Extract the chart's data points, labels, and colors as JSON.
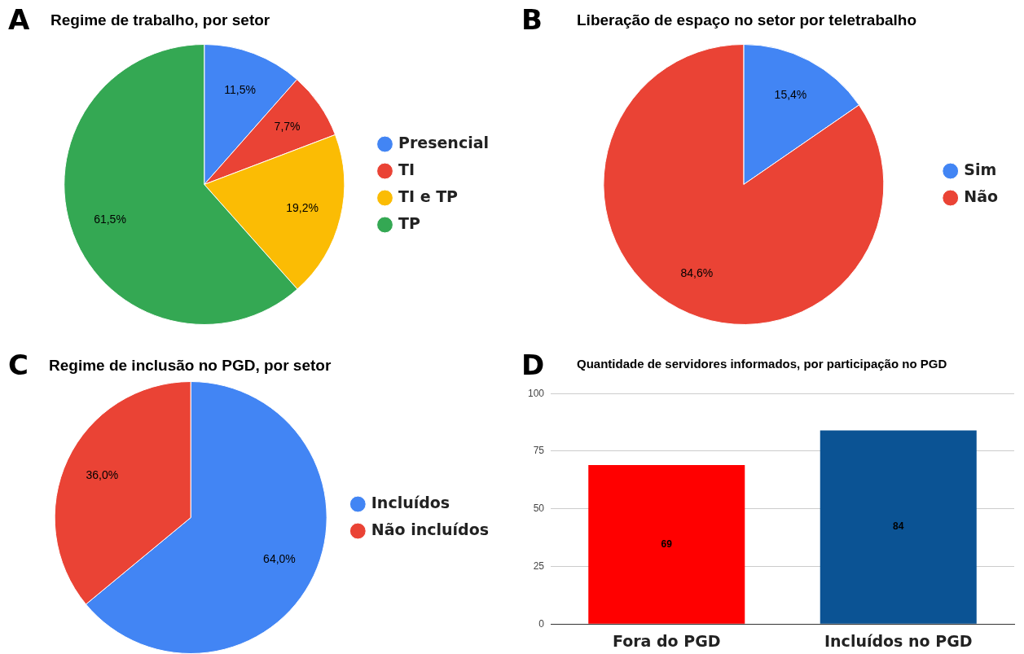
{
  "chart_data": [
    {
      "type": "pie",
      "title": "Regime de trabalho, por setor",
      "annotations": [
        "A"
      ],
      "categories": [
        "Presencial",
        "TI",
        "TI e TP",
        "TP"
      ],
      "values": [
        11.5,
        7.7,
        19.2,
        61.5
      ],
      "colors": [
        "#4285f4",
        "#ea4335",
        "#fbbc04",
        "#34a853"
      ],
      "value_labels": [
        "11,5%",
        "7,7%",
        "19,2%",
        "61,5%"
      ],
      "legend": "right"
    },
    {
      "type": "pie",
      "title": "Liberação de espaço no setor por teletrabalho",
      "annotations": [
        "B"
      ],
      "categories": [
        "Sim",
        "Não"
      ],
      "values": [
        15.4,
        84.6
      ],
      "colors": [
        "#4285f4",
        "#ea4335"
      ],
      "value_labels": [
        "15,4%",
        "84,6%"
      ],
      "legend": "right"
    },
    {
      "type": "pie",
      "title": "Regime de inclusão no PGD, por setor",
      "annotations": [
        "C"
      ],
      "categories": [
        "Incluídos",
        "Não incluídos"
      ],
      "values": [
        64.0,
        36.0
      ],
      "colors": [
        "#4285f4",
        "#ea4335"
      ],
      "value_labels": [
        "64,0%",
        "36,0%"
      ],
      "legend": "right"
    },
    {
      "type": "bar",
      "title": "Quantidade de servidores informados, por participação no PGD",
      "annotations": [
        "D"
      ],
      "categories": [
        "Fora do PGD",
        "Incluídos no PGD"
      ],
      "values": [
        69,
        84
      ],
      "colors": [
        "#ff0000",
        "#0b5394"
      ],
      "ylim": [
        0,
        100
      ],
      "yticks": [
        0,
        25,
        50,
        75,
        100
      ],
      "grid": "y",
      "legend": false,
      "data_labels": true
    }
  ]
}
